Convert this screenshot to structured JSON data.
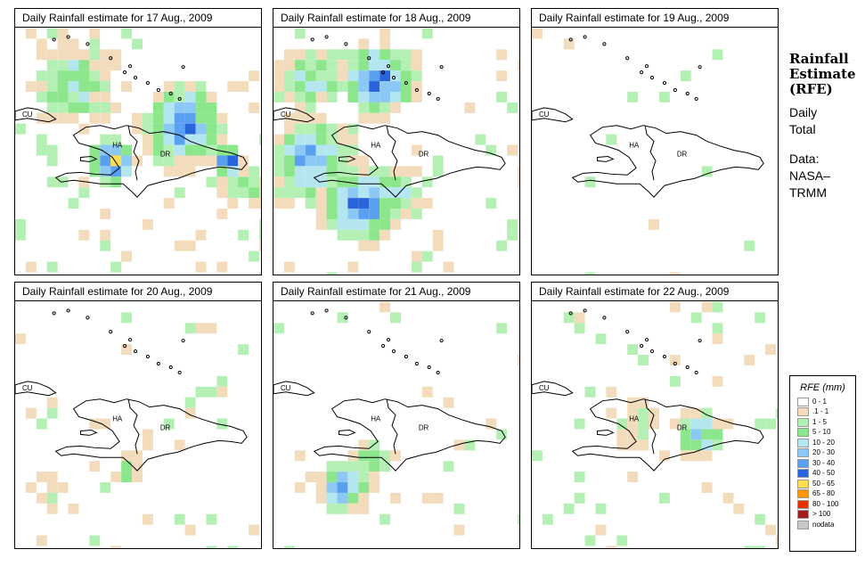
{
  "panels": [
    {
      "title": "Daily Rainfall estimate for  17 Aug., 2009",
      "pattern": "storm-south"
    },
    {
      "title": "Daily Rainfall estimate for  18 Aug., 2009",
      "pattern": "storm-north-west"
    },
    {
      "title": "Daily Rainfall estimate for  19 Aug., 2009",
      "pattern": "dry"
    },
    {
      "title": "Daily Rainfall estimate for  20 Aug., 2009",
      "pattern": "scattered"
    },
    {
      "title": "Daily Rainfall estimate for  21 Aug., 2009",
      "pattern": "south-cluster"
    },
    {
      "title": "Daily Rainfall estimate for  22 Aug., 2009",
      "pattern": "east-cluster"
    }
  ],
  "map_labels": {
    "cuba": "CU",
    "haiti": "HA",
    "dominican_republic": "DR"
  },
  "side": {
    "title": [
      "Rainfall",
      "Estimate",
      "(RFE)"
    ],
    "period": [
      "Daily",
      "Total"
    ],
    "source": [
      "Data:",
      "NASA–",
      "TRMM"
    ]
  },
  "legend": {
    "title": "RFE (mm)",
    "items": [
      {
        "label": "0 - 1",
        "color": "#ffffff"
      },
      {
        "label": ".1 - 1",
        "color": "#f2dcbc"
      },
      {
        "label": "1 - 5",
        "color": "#b4f0b4"
      },
      {
        "label": "5 - 10",
        "color": "#8ce68c"
      },
      {
        "label": "10 - 20",
        "color": "#b4e6f0"
      },
      {
        "label": "20 - 30",
        "color": "#8cc8f5"
      },
      {
        "label": "30 - 40",
        "color": "#5aa0f0"
      },
      {
        "label": "40 - 50",
        "color": "#2864dc"
      },
      {
        "label": "50 - 65",
        "color": "#ffdc50"
      },
      {
        "label": "65 - 80",
        "color": "#ff9600"
      },
      {
        "label": "80 - 100",
        "color": "#e63200"
      },
      {
        "label": "> 100",
        "color": "#a01e1e"
      },
      {
        "label": "nodata",
        "color": "#c8c8c8"
      }
    ]
  }
}
